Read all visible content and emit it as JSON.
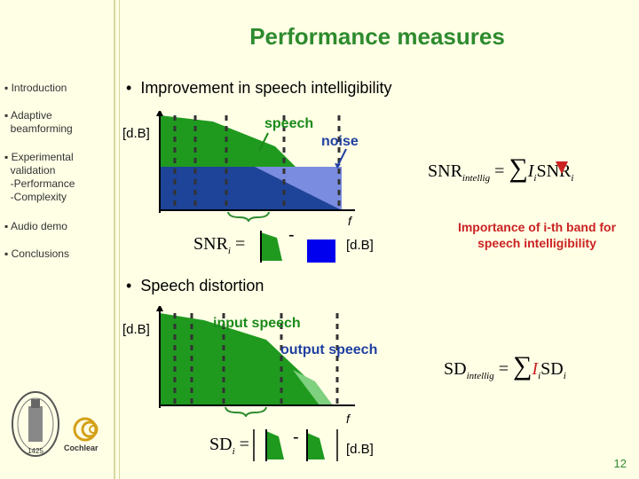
{
  "title": "Performance measures",
  "sidebar": {
    "items": [
      {
        "label": "Introduction"
      },
      {
        "label": "Adaptive",
        "label2": "beamforming"
      },
      {
        "label": "Experimental",
        "label2": "validation",
        "label3": "-Performance",
        "label4": "-Complexity"
      },
      {
        "label": "Audio demo"
      },
      {
        "label": "Conclusions"
      }
    ],
    "logo_year": "1425",
    "logo_brand": "Cochlear"
  },
  "section1": {
    "bullet": "Improvement in speech intelligibility",
    "unit": "[d.B]",
    "speech_label": "speech",
    "noise_label": "noise",
    "axis_label": "f",
    "snr_formula_lhs": "SNR",
    "snr_formula_sub": "i",
    "eq": "=",
    "minus": "-",
    "unit_right": "[d.B]",
    "intellig_lhs": "SNR",
    "intellig_sub": "intellig",
    "intellig_rhs": "SNR",
    "intellig_I": "I",
    "intellig_i": "i",
    "importance": "Importance of i-th band for speech intelligibility"
  },
  "section2": {
    "bullet": "Speech distortion",
    "unit": "[d.B]",
    "input_label": "input speech",
    "output_label": "output speech",
    "axis_label": "f",
    "sd_formula_lhs": "SD",
    "sd_formula_sub": "i",
    "eq": "=",
    "minus": "-",
    "unit_right": "[d.B]",
    "intellig_lhs": "SD",
    "intellig_sub": "intellig",
    "intellig_rhs": "SD",
    "intellig_I": "I",
    "intellig_i": "i"
  },
  "page_number": "12",
  "colors": {
    "green": "#1f9a1f",
    "blue": "#1a3c8c",
    "title": "#2e8b2e",
    "red": "#cc2222"
  }
}
